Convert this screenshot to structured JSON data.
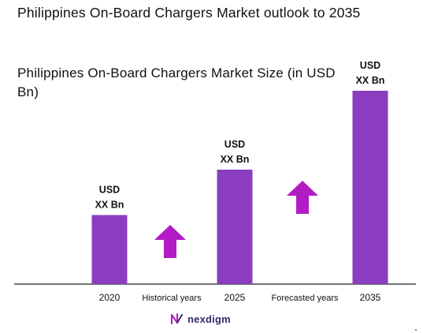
{
  "title": "Philippines On-Board Chargers Market outlook to 2035",
  "subtitle": "Philippines On-Board Chargers Market Size (in USD Bn)",
  "chart_data": {
    "type": "bar",
    "categories": [
      "2020",
      "2025",
      "2035"
    ],
    "values": [
      0.35,
      0.58,
      0.98
    ],
    "value_labels": [
      "USD XX Bn",
      "USD XX Bn",
      "USD XX Bn"
    ],
    "label_lines": [
      "USD",
      "XX Bn"
    ],
    "ylim": [
      0,
      1.0
    ],
    "grid": false,
    "annotations": [
      "Historical years",
      "Forecasted years"
    ],
    "bar_color": "#8a3ebf",
    "arrow_color": "#b31cc4"
  },
  "brand": {
    "name": "nexdigm",
    "icon": "nexdigm-logo-icon"
  }
}
